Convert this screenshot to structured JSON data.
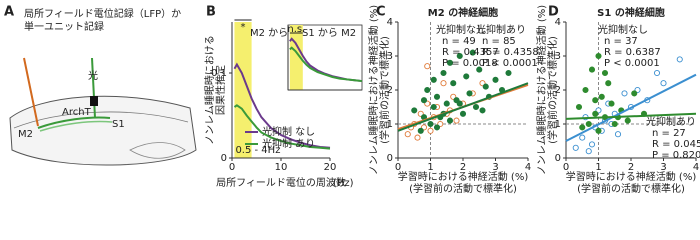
{
  "panel_labels": [
    "A",
    "B",
    "C",
    "D"
  ],
  "panel_a": {
    "title_lines": [
      "局所フィールド電位記録（LFP）か",
      "単一ユニット記録"
    ],
    "light": "光",
    "archt": "ArchT",
    "m2": "M2",
    "s1": "S1"
  },
  "chart_data": [
    {
      "type": "line",
      "title": "M2 から S1",
      "ylabel_lines": [
        "ノンレム睡眠時における",
        "因果性推定"
      ],
      "xlabel": "局所フィールド電位の周波数",
      "xunit": "(Hz)",
      "significance": "*",
      "band_label": "0.5 - 4Hz",
      "highlight": [
        0.5,
        4
      ],
      "highlight_color": "#f5ef6e",
      "x": [
        0.5,
        1,
        2,
        3,
        4,
        5,
        6,
        8,
        10,
        12,
        14,
        16,
        18,
        20
      ],
      "series": [
        {
          "name": "光抑制 なし",
          "color": "#6b3a8c",
          "values": [
            0.105,
            0.11,
            0.1,
            0.085,
            0.07,
            0.058,
            0.048,
            0.035,
            0.027,
            0.022,
            0.018,
            0.015,
            0.013,
            0.012
          ]
        },
        {
          "name": "光抑制 あり",
          "color": "#3a9a3a",
          "values": [
            0.06,
            0.062,
            0.058,
            0.05,
            0.043,
            0.036,
            0.03,
            0.024,
            0.02,
            0.017,
            0.015,
            0.013,
            0.012,
            0.011
          ]
        }
      ],
      "xlim": [
        0,
        20
      ],
      "ylim": [
        0,
        0.16
      ],
      "xticks": [
        0,
        10,
        20
      ],
      "yticks": [
        0,
        0.1
      ]
    },
    {
      "type": "line",
      "title": "S1 から M2",
      "significance": "n.s.",
      "highlight": [
        0.5,
        4
      ],
      "highlight_color": "#f5ef6e",
      "x": [
        0.5,
        1,
        2,
        3,
        4,
        5,
        6,
        8,
        10,
        12,
        14,
        16,
        18,
        20
      ],
      "series": [
        {
          "color": "#6b3a8c",
          "values": [
            0.06,
            0.063,
            0.058,
            0.05,
            0.042,
            0.035,
            0.03,
            0.024,
            0.02,
            0.017,
            0.015,
            0.013,
            0.012,
            0.011
          ]
        },
        {
          "color": "#3a9a3a",
          "values": [
            0.05,
            0.052,
            0.048,
            0.042,
            0.036,
            0.031,
            0.027,
            0.022,
            0.019,
            0.016,
            0.014,
            0.013,
            0.012,
            0.011
          ]
        }
      ],
      "xlim": [
        0,
        20
      ],
      "ylim": [
        0,
        0.08
      ]
    },
    {
      "type": "scatter",
      "title": "M2 の神経細胞",
      "ylabel_lines": [
        "ノンレム睡眠時における神経活動 (%)",
        "(学習前の活動で標準化)"
      ],
      "xlabel_lines": [
        "学習時における神経活動 (%)",
        "(学習前の活動で標準化)"
      ],
      "reflines": {
        "x": 1,
        "y": 1
      },
      "series": [
        {
          "name": "光抑制なし",
          "stats": [
            "n = 49",
            "R = 0.4357",
            "P = 0.0018"
          ],
          "color": "#e07b39",
          "filled": false,
          "x": [
            0.3,
            0.5,
            0.6,
            0.7,
            0.8,
            0.9,
            1.0,
            1.1,
            1.2,
            1.3,
            1.4,
            1.5,
            1.7,
            1.8,
            2.0,
            2.3,
            2.6,
            0.4,
            0.9,
            1.6
          ],
          "y": [
            0.7,
            1.0,
            0.6,
            1.3,
            0.9,
            1.6,
            0.8,
            1.2,
            1.5,
            1.0,
            2.2,
            1.3,
            1.8,
            1.1,
            1.6,
            1.9,
            2.2,
            0.9,
            2.7,
            1.4
          ],
          "fit": {
            "x": [
              0,
              4
            ],
            "y": [
              0.85,
              2.15
            ]
          }
        },
        {
          "name": "光抑制あり",
          "stats": [
            "n = 85",
            "R = 0.4358",
            "P < 0.0001"
          ],
          "color": "#1f7a3a",
          "filled": true,
          "x": [
            0.5,
            0.7,
            0.8,
            0.9,
            1.0,
            1.1,
            1.2,
            1.3,
            1.4,
            1.5,
            1.6,
            1.7,
            1.8,
            1.9,
            2.0,
            2.1,
            2.2,
            2.4,
            2.5,
            2.7,
            2.8,
            3.0,
            3.2,
            1.2,
            1.4,
            1.6,
            1.9,
            2.3,
            0.8,
            1.1,
            2.6,
            3.4
          ],
          "y": [
            1.4,
            0.8,
            1.2,
            2.0,
            1.0,
            1.5,
            1.8,
            1.2,
            2.5,
            1.6,
            1.1,
            2.2,
            1.7,
            3.0,
            1.3,
            2.4,
            1.9,
            1.5,
            2.6,
            2.1,
            1.8,
            2.3,
            2.0,
            0.9,
            1.3,
            2.8,
            1.6,
            3.1,
            1.7,
            2.3,
            1.4,
            2.5
          ],
          "fit": {
            "x": [
              0,
              4
            ],
            "y": [
              0.8,
              2.2
            ]
          }
        }
      ],
      "xlim": [
        0,
        4
      ],
      "ylim": [
        0,
        4
      ],
      "xticks": [
        0,
        1,
        2,
        3,
        4
      ],
      "yticks": [
        0,
        1,
        2,
        3,
        4
      ]
    },
    {
      "type": "scatter",
      "title": "S1 の神経細胞",
      "ylabel_lines": [
        "ノンレム睡眠時における神経活動 (%)",
        "(学習前の活動で標準化)"
      ],
      "xlabel_lines": [
        "学習時における神経活動 (%)",
        "(学習前の活動で標準化)"
      ],
      "reflines": {
        "x": 1,
        "y": 1
      },
      "series": [
        {
          "name": "光抑制なし",
          "stats": [
            "n = 37",
            "R = 0.6387",
            "P < 0.0001"
          ],
          "color": "#3b8fd0",
          "filled": false,
          "x": [
            0.3,
            0.5,
            0.6,
            0.8,
            0.9,
            1.0,
            1.1,
            1.2,
            1.3,
            1.5,
            1.6,
            1.8,
            2.0,
            2.2,
            2.5,
            2.8,
            3.0,
            3.5,
            0.7,
            1.4
          ],
          "y": [
            0.3,
            0.6,
            1.2,
            0.4,
            0.9,
            1.4,
            0.8,
            1.1,
            1.6,
            1.3,
            0.7,
            1.9,
            1.5,
            2.0,
            1.7,
            2.5,
            2.2,
            2.9,
            0.2,
            1.0
          ],
          "fit": {
            "x": [
              0,
              4
            ],
            "y": [
              0.5,
              2.45
            ]
          }
        },
        {
          "name": "光抑制あり",
          "stats": [
            "n = 27",
            "R = 0.0457",
            "P = 0.8208"
          ],
          "color": "#2e8b2e",
          "filled": true,
          "x": [
            0.4,
            0.6,
            0.7,
            0.8,
            0.9,
            1.0,
            1.0,
            1.1,
            1.2,
            1.3,
            1.4,
            1.5,
            1.7,
            1.9,
            2.1,
            2.4,
            0.5,
            0.9,
            1.2,
            1.6
          ],
          "y": [
            1.5,
            2.0,
            1.0,
            2.6,
            1.3,
            3.0,
            0.8,
            1.8,
            1.2,
            2.2,
            1.6,
            1.0,
            1.4,
            1.1,
            1.9,
            1.3,
            0.9,
            1.7,
            2.5,
            1.2
          ],
          "fit": {
            "x": [
              0,
              4
            ],
            "y": [
              1.15,
              1.3
            ]
          }
        }
      ],
      "xlim": [
        0,
        4
      ],
      "ylim": [
        0,
        4
      ],
      "xticks": [
        0,
        1,
        2,
        3,
        4
      ],
      "yticks": [
        0,
        1,
        2,
        3,
        4
      ]
    }
  ]
}
